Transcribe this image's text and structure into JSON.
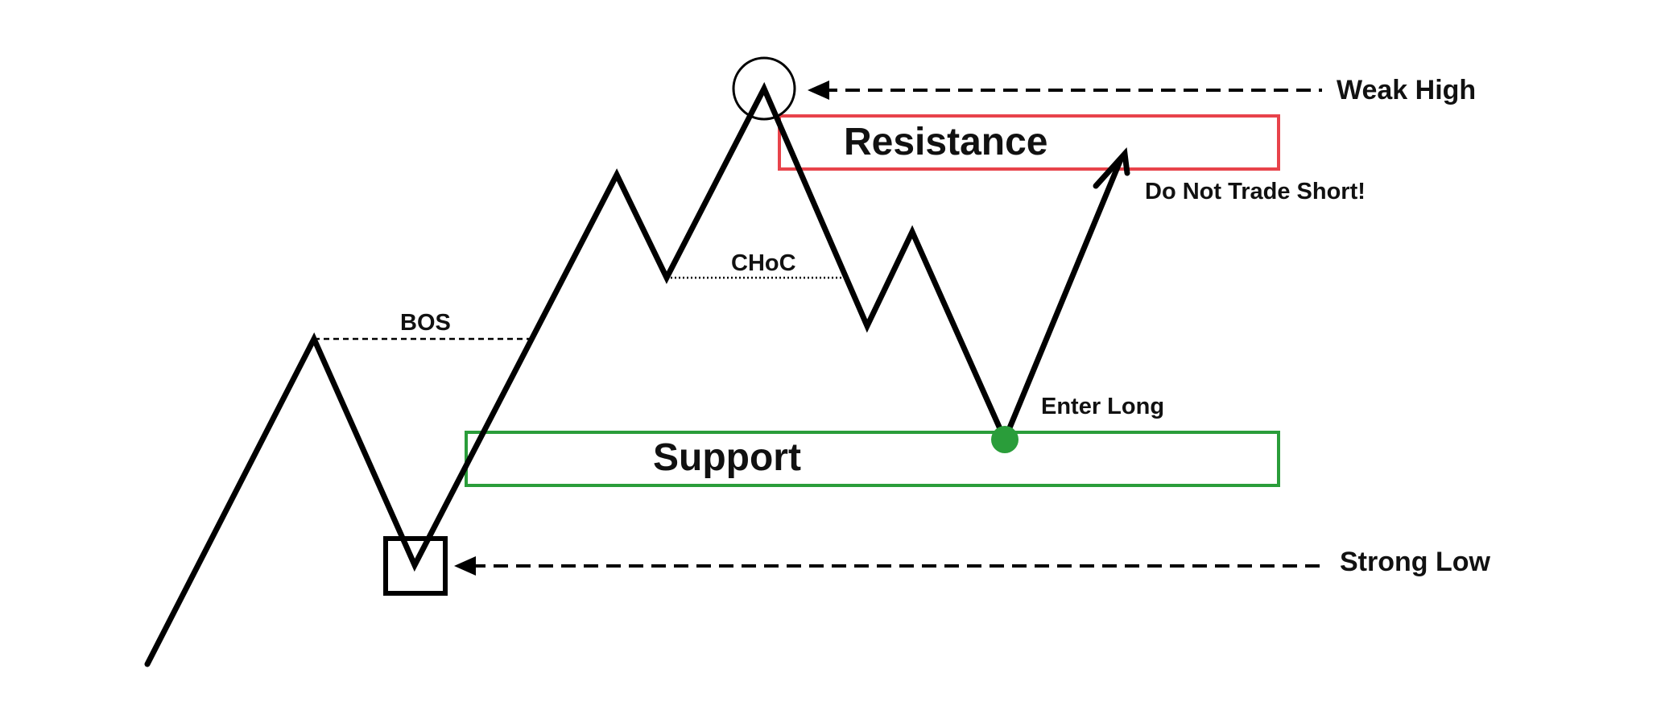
{
  "labels": {
    "weak_high": "Weak High",
    "resistance": "Resistance",
    "do_not_trade_short": "Do Not Trade Short!",
    "choc": "CHoC",
    "bos": "BOS",
    "enter_long": "Enter Long",
    "support": "Support",
    "strong_low": "Strong Low"
  },
  "colors": {
    "line": "#000000",
    "resistance": "#e8434b",
    "support": "#2a9d3a",
    "entry_dot": "#2a9d3a"
  }
}
